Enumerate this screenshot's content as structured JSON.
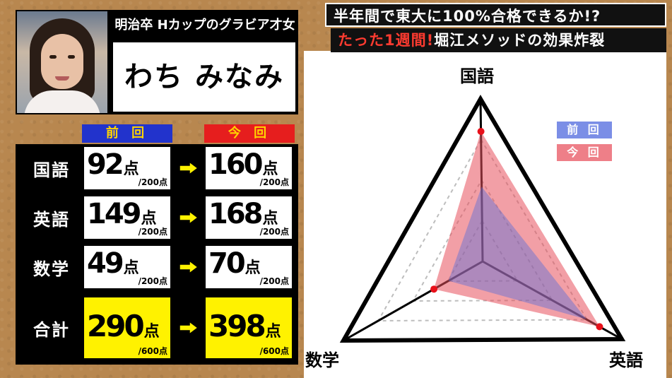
{
  "headline": {
    "line1": "半年間で東大に100%合格できるか!?",
    "line2_red": "たった1週間!",
    "line2_rest": "堀江メソッドの効果炸裂"
  },
  "profile": {
    "tagline": "明治卒 Hカップのグラビア才女",
    "name": "わち みなみ"
  },
  "table": {
    "head_prev": "前 回",
    "head_curr": "今 回",
    "unit": "点",
    "rows": [
      {
        "subject": "国語",
        "prev": "92",
        "curr": "160",
        "max": "/200点"
      },
      {
        "subject": "英語",
        "prev": "149",
        "curr": "168",
        "max": "/200点"
      },
      {
        "subject": "数学",
        "prev": "49",
        "curr": "70",
        "max": "/200点"
      }
    ],
    "total": {
      "subject": "合計",
      "prev": "290",
      "curr": "398",
      "max": "/600点"
    }
  },
  "radar": {
    "axes": [
      "国語",
      "英語",
      "数学"
    ],
    "legend_prev": "前 回",
    "legend_curr": "今 回",
    "max": 200,
    "prev": [
      92,
      149,
      49
    ],
    "curr": [
      160,
      168,
      70
    ],
    "colors": {
      "prev": "#5a6fd6",
      "curr": "#e8505c",
      "point": "#e8101a",
      "frame": "#000000"
    }
  },
  "chart_data": {
    "type": "radar",
    "categories": [
      "国語",
      "英語",
      "数学"
    ],
    "series": [
      {
        "name": "前 回",
        "values": [
          92,
          149,
          49
        ]
      },
      {
        "name": "今 回",
        "values": [
          160,
          168,
          70
        ]
      }
    ],
    "ylim": [
      0,
      200
    ]
  }
}
